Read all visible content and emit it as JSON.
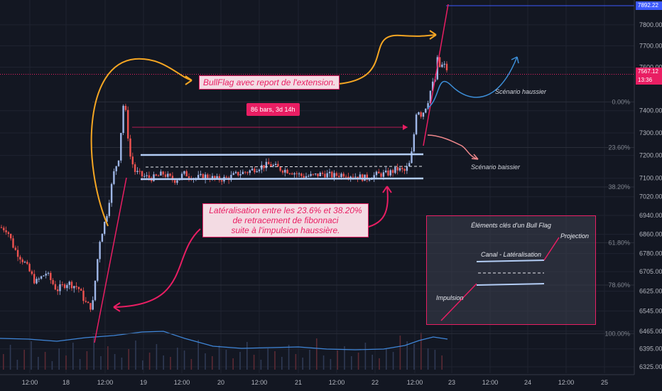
{
  "chart_data": {
    "type": "candlestick",
    "title": "",
    "price_axis": {
      "ticks": [
        "7800.00",
        "7700.00",
        "7600.00",
        "7400.00",
        "7300.00",
        "7200.00",
        "7100.00",
        "7020.00",
        "6940.00",
        "6860.00",
        "6780.00",
        "6705.00",
        "6625.00",
        "6545.00",
        "6465.00",
        "6395.00",
        "6325.00"
      ],
      "tick_values": [
        7800,
        7700,
        7600,
        7400,
        7300,
        7200,
        7100,
        7020,
        6940,
        6860,
        6780,
        6705,
        6625,
        6545,
        6465,
        6395,
        6325
      ],
      "range": [
        6300,
        7915
      ],
      "scale": "log"
    },
    "time_axis": {
      "ticks": [
        "12:00",
        "18",
        "12:00",
        "19",
        "12:00",
        "20",
        "12:00",
        "21",
        "12:00",
        "22",
        "12:00",
        "23",
        "12:00",
        "24",
        "12:00",
        "25"
      ]
    },
    "price_labels": {
      "top": "7892.22",
      "last": "7567.12",
      "countdown": "13:36"
    },
    "fib_levels": [
      {
        "label": "0.00%",
        "price": 7440
      },
      {
        "label": "23.60%",
        "price": 7235
      },
      {
        "label": "38.20%",
        "price": 7062
      },
      {
        "label": "61.80%",
        "price": 6825
      },
      {
        "label": "78.60%",
        "price": 6650
      },
      {
        "label": "100.00%",
        "price": 6455
      }
    ],
    "price_path": [
      [
        0,
        6890
      ],
      [
        10,
        6880
      ],
      [
        20,
        6800
      ],
      [
        35,
        6740
      ],
      [
        50,
        6660
      ],
      [
        65,
        6700
      ],
      [
        80,
        6630
      ],
      [
        95,
        6660
      ],
      [
        110,
        6640
      ],
      [
        122,
        6570
      ],
      [
        130,
        6560
      ],
      [
        140,
        6830
      ],
      [
        150,
        6940
      ],
      [
        160,
        7120
      ],
      [
        168,
        7200
      ],
      [
        173,
        7430
      ],
      [
        178,
        7380
      ],
      [
        182,
        7210
      ],
      [
        190,
        7130
      ],
      [
        200,
        7110
      ],
      [
        215,
        7100
      ],
      [
        230,
        7120
      ],
      [
        245,
        7090
      ],
      [
        260,
        7120
      ],
      [
        275,
        7100
      ],
      [
        290,
        7110
      ],
      [
        305,
        7095
      ],
      [
        320,
        7100
      ],
      [
        335,
        7120
      ],
      [
        350,
        7130
      ],
      [
        365,
        7150
      ],
      [
        380,
        7160
      ],
      [
        395,
        7140
      ],
      [
        410,
        7130
      ],
      [
        425,
        7110
      ],
      [
        440,
        7110
      ],
      [
        455,
        7120
      ],
      [
        470,
        7110
      ],
      [
        485,
        7120
      ],
      [
        500,
        7110
      ],
      [
        515,
        7100
      ],
      [
        530,
        7115
      ],
      [
        545,
        7120
      ],
      [
        560,
        7140
      ],
      [
        570,
        7130
      ],
      [
        578,
        7170
      ],
      [
        583,
        7300
      ],
      [
        587,
        7420
      ],
      [
        592,
        7380
      ],
      [
        597,
        7400
      ],
      [
        603,
        7450
      ],
      [
        608,
        7520
      ],
      [
        612,
        7530
      ],
      [
        616,
        7640
      ],
      [
        620,
        7590
      ],
      [
        624,
        7620
      ],
      [
        628,
        7590
      ]
    ],
    "volume": [
      22,
      35,
      14,
      28,
      40,
      18,
      25,
      12,
      30,
      20,
      38,
      15,
      26,
      45,
      19,
      33,
      22,
      17,
      29,
      41,
      13,
      24,
      36,
      20,
      18,
      31,
      27,
      15,
      42,
      23,
      19,
      34,
      28,
      16,
      25,
      39,
      21,
      14,
      30,
      26,
      18,
      35,
      22,
      17,
      28,
      44,
      20,
      15,
      27,
      33,
      19,
      24,
      38,
      21,
      16,
      29,
      25,
      48,
      40,
      36,
      52,
      30,
      28,
      20
    ],
    "volume_ma": [
      [
        0,
        44
      ],
      [
        40,
        43
      ],
      [
        80,
        40
      ],
      [
        120,
        45
      ],
      [
        160,
        48
      ],
      [
        200,
        53
      ],
      [
        230,
        54
      ],
      [
        260,
        44
      ],
      [
        300,
        33
      ],
      [
        340,
        30
      ],
      [
        380,
        31
      ],
      [
        420,
        32
      ],
      [
        460,
        29
      ],
      [
        500,
        28
      ],
      [
        540,
        29
      ],
      [
        570,
        34
      ],
      [
        590,
        41
      ],
      [
        610,
        46
      ],
      [
        630,
        43
      ]
    ],
    "annotations": {
      "bullflag": "BullFlag avec report de l'extension.",
      "lateralisation": [
        "Latéralisation entre les 23.6% et 38.20%",
        "de retracement de fibonnaci",
        "suite à l'impulsion haussière."
      ],
      "bars_range": "86 bars, 3d 14h",
      "scenario_up": "Scénario haussier",
      "scenario_down": "Scénario baissier"
    },
    "legend": {
      "title": "Éléments clés d'un Bull Flag",
      "projection": "Projection",
      "canal": "Canal - Latéralisation",
      "impulsion": "Impulsion"
    },
    "colors": {
      "background": "#131722",
      "up": "#9fb7e8",
      "down": "#ef5350",
      "accent": "#e91e63",
      "orange": "#f5a623",
      "blue": "#3d8fd9",
      "channel": "#b3cdf5",
      "volume_ma": "#3f86d9"
    }
  }
}
